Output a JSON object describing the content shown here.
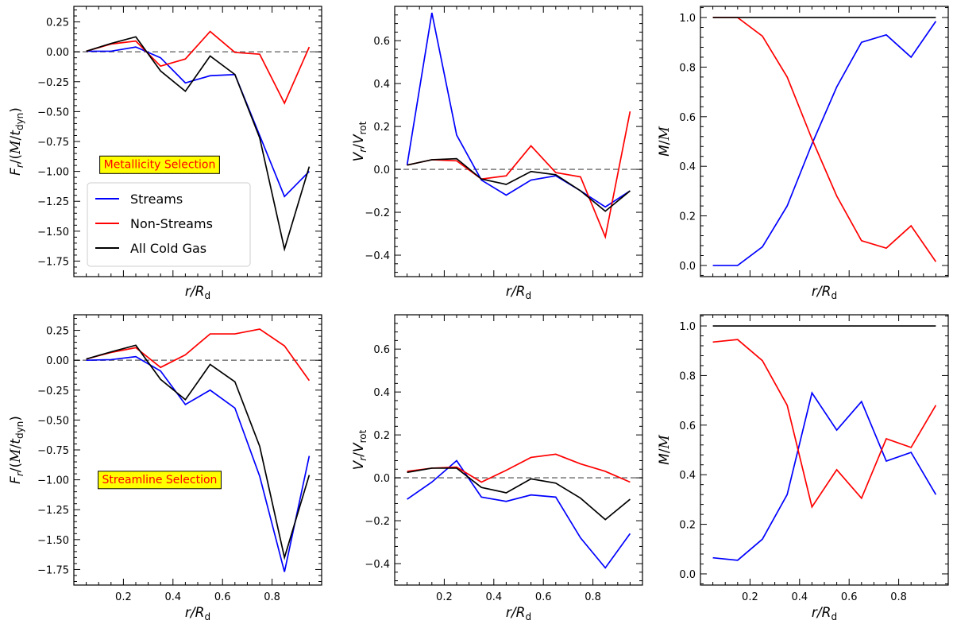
{
  "figure": {
    "rows": 2,
    "cols": 3
  },
  "labels": {
    "xlabel_base": "r/R",
    "xlabel_sub": "d",
    "flux_ylabel_main": "F",
    "flux_ylabel_sub": "r",
    "flux_ylabel_rest": "/(",
    "flux_ylabel_M": "M",
    "flux_ylabel_t": "t",
    "flux_ylabel_tsub": "dyn",
    "flux_ylabel_close": ")",
    "vel_ylabel_V": "V",
    "vel_ylabel_sub_r": "r",
    "vel_ylabel_slash": "/",
    "vel_ylabel_sub_rot": "rot",
    "mass_ylabel_M": "M",
    "mass_ylabel_slash": "/",
    "mass_ylabel_M2": "M"
  },
  "legend": {
    "location": "middle-left of top-left panel",
    "entries": [
      {
        "label": "Streams",
        "color": "#0000ff"
      },
      {
        "label": "Non-Streams",
        "color": "#ff0000"
      },
      {
        "label": "All Cold Gas",
        "color": "#000000"
      }
    ]
  },
  "colors": {
    "streams": "#0000ff",
    "nonstreams": "#ff0000",
    "all": "#000000",
    "ref": "#808080",
    "ann_bg": "#ffff00",
    "ann_text": "#ff0000"
  },
  "chart_data": [
    {
      "id": "top-flux",
      "type": "line",
      "row": 0,
      "col": 0,
      "annotation": "Metallicity Selection",
      "xlim": [
        0.0,
        1.0
      ],
      "ylim": [
        -1.88,
        0.38
      ],
      "xticks": [
        0.2,
        0.4,
        0.6,
        0.8
      ],
      "xtick_labels_shown": false,
      "yticks": [
        0.25,
        0.0,
        -0.25,
        -0.5,
        -0.75,
        -1.0,
        -1.25,
        -1.5,
        -1.75
      ],
      "ytick_labels": [
        "0.25",
        "0.00",
        "−0.25",
        "−0.50",
        "−0.75",
        "−1.00",
        "−1.25",
        "−1.50",
        "−1.75"
      ],
      "ylabel_kind": "flux",
      "hline": 0.0,
      "has_legend": true,
      "x": [
        0.05,
        0.15,
        0.25,
        0.35,
        0.45,
        0.55,
        0.65,
        0.75,
        0.85,
        0.95
      ],
      "series": [
        {
          "name": "Streams",
          "values": [
            0.005,
            0.005,
            0.04,
            -0.05,
            -0.26,
            -0.2,
            -0.19,
            -0.7,
            -1.21,
            -1.0
          ]
        },
        {
          "name": "Non-Streams",
          "values": [
            0.005,
            0.065,
            0.09,
            -0.12,
            -0.06,
            0.17,
            -0.005,
            -0.02,
            -0.43,
            0.04
          ]
        },
        {
          "name": "All Cold Gas",
          "values": [
            0.005,
            0.07,
            0.125,
            -0.16,
            -0.33,
            -0.035,
            -0.19,
            -0.72,
            -1.65,
            -0.96
          ]
        }
      ]
    },
    {
      "id": "top-vel",
      "type": "line",
      "row": 0,
      "col": 1,
      "xlim": [
        0.0,
        1.0
      ],
      "ylim": [
        -0.5,
        0.76
      ],
      "xticks": [
        0.2,
        0.4,
        0.6,
        0.8
      ],
      "xtick_labels_shown": false,
      "yticks": [
        0.6,
        0.4,
        0.2,
        0.0,
        -0.2,
        -0.4
      ],
      "ytick_labels": [
        "0.6",
        "0.4",
        "0.2",
        "0.0",
        "−0.2",
        "−0.4"
      ],
      "ylabel_kind": "vel",
      "hline": 0.0,
      "x": [
        0.05,
        0.15,
        0.25,
        0.35,
        0.45,
        0.55,
        0.65,
        0.75,
        0.85,
        0.95
      ],
      "series": [
        {
          "name": "Streams",
          "values": [
            0.02,
            0.73,
            0.16,
            -0.05,
            -0.12,
            -0.05,
            -0.03,
            -0.1,
            -0.175,
            -0.1
          ]
        },
        {
          "name": "Non-Streams",
          "values": [
            0.02,
            0.045,
            0.04,
            -0.045,
            -0.03,
            0.11,
            -0.015,
            -0.035,
            -0.315,
            0.27
          ]
        },
        {
          "name": "All Cold Gas",
          "values": [
            0.02,
            0.045,
            0.05,
            -0.045,
            -0.07,
            -0.01,
            -0.025,
            -0.1,
            -0.195,
            -0.1
          ]
        }
      ]
    },
    {
      "id": "top-mass",
      "type": "line",
      "row": 0,
      "col": 2,
      "xlim": [
        0.0,
        1.0
      ],
      "ylim": [
        -0.045,
        1.045
      ],
      "xticks": [
        0.2,
        0.4,
        0.6,
        0.8
      ],
      "xtick_labels_shown": false,
      "yticks": [
        0.0,
        0.2,
        0.4,
        0.6,
        0.8,
        1.0
      ],
      "ytick_labels": [
        "0.0",
        "0.2",
        "0.4",
        "0.6",
        "0.8",
        "1.0"
      ],
      "ylabel_kind": "mass",
      "x": [
        0.05,
        0.15,
        0.25,
        0.35,
        0.45,
        0.55,
        0.65,
        0.75,
        0.85,
        0.95
      ],
      "series": [
        {
          "name": "Streams",
          "values": [
            0.0,
            0.0,
            0.075,
            0.24,
            0.49,
            0.72,
            0.9,
            0.93,
            0.84,
            0.985
          ]
        },
        {
          "name": "Non-Streams",
          "values": [
            1.0,
            1.0,
            0.925,
            0.76,
            0.51,
            0.28,
            0.1,
            0.07,
            0.16,
            0.015
          ]
        },
        {
          "name": "All Cold Gas",
          "values": [
            1.0,
            1.0,
            1.0,
            1.0,
            1.0,
            1.0,
            1.0,
            1.0,
            1.0,
            1.0
          ]
        }
      ]
    },
    {
      "id": "bot-flux",
      "type": "line",
      "row": 1,
      "col": 0,
      "annotation": "Streamline Selection",
      "xlim": [
        0.0,
        1.0
      ],
      "ylim": [
        -1.88,
        0.38
      ],
      "xticks": [
        0.2,
        0.4,
        0.6,
        0.8
      ],
      "xtick_labels_shown": true,
      "xtick_labels": [
        "0.2",
        "0.4",
        "0.6",
        "0.8"
      ],
      "yticks": [
        0.25,
        0.0,
        -0.25,
        -0.5,
        -0.75,
        -1.0,
        -1.25,
        -1.5,
        -1.75
      ],
      "ytick_labels": [
        "0.25",
        "0.00",
        "−0.25",
        "−0.50",
        "−0.75",
        "−1.00",
        "−1.25",
        "−1.50",
        "−1.75"
      ],
      "ylabel_kind": "flux",
      "hline": 0.0,
      "x": [
        0.05,
        0.15,
        0.25,
        0.35,
        0.45,
        0.55,
        0.65,
        0.75,
        0.85,
        0.95
      ],
      "series": [
        {
          "name": "Streams",
          "values": [
            0.0,
            0.005,
            0.03,
            -0.09,
            -0.37,
            -0.25,
            -0.4,
            -0.97,
            -1.77,
            -0.8
          ]
        },
        {
          "name": "Non-Streams",
          "values": [
            0.01,
            0.065,
            0.105,
            -0.06,
            0.045,
            0.22,
            0.22,
            0.26,
            0.12,
            -0.17
          ]
        },
        {
          "name": "All Cold Gas",
          "values": [
            0.01,
            0.07,
            0.125,
            -0.16,
            -0.33,
            -0.035,
            -0.18,
            -0.72,
            -1.65,
            -0.96
          ]
        }
      ]
    },
    {
      "id": "bot-vel",
      "type": "line",
      "row": 1,
      "col": 1,
      "xlim": [
        0.0,
        1.0
      ],
      "ylim": [
        -0.5,
        0.76
      ],
      "xticks": [
        0.2,
        0.4,
        0.6,
        0.8
      ],
      "xtick_labels_shown": true,
      "xtick_labels": [
        "0.2",
        "0.4",
        "0.6",
        "0.8"
      ],
      "yticks": [
        0.6,
        0.4,
        0.2,
        0.0,
        -0.2,
        -0.4
      ],
      "ytick_labels": [
        "0.6",
        "0.4",
        "0.2",
        "0.0",
        "−0.2",
        "−0.4"
      ],
      "ylabel_kind": "vel",
      "hline": 0.0,
      "x": [
        0.05,
        0.15,
        0.25,
        0.35,
        0.45,
        0.55,
        0.65,
        0.75,
        0.85,
        0.95
      ],
      "series": [
        {
          "name": "Streams",
          "values": [
            -0.1,
            -0.02,
            0.08,
            -0.09,
            -0.11,
            -0.08,
            -0.09,
            -0.28,
            -0.42,
            -0.26
          ]
        },
        {
          "name": "Non-Streams",
          "values": [
            0.03,
            0.045,
            0.05,
            -0.02,
            0.035,
            0.095,
            0.11,
            0.065,
            0.03,
            -0.02
          ]
        },
        {
          "name": "All Cold Gas",
          "values": [
            0.025,
            0.045,
            0.045,
            -0.045,
            -0.07,
            -0.005,
            -0.025,
            -0.095,
            -0.195,
            -0.1
          ]
        }
      ]
    },
    {
      "id": "bot-mass",
      "type": "line",
      "row": 1,
      "col": 2,
      "xlim": [
        0.0,
        1.0
      ],
      "ylim": [
        -0.045,
        1.045
      ],
      "xticks": [
        0.2,
        0.4,
        0.6,
        0.8
      ],
      "xtick_labels_shown": true,
      "xtick_labels": [
        "0.2",
        "0.4",
        "0.6",
        "0.8"
      ],
      "yticks": [
        0.0,
        0.2,
        0.4,
        0.6,
        0.8,
        1.0
      ],
      "ytick_labels": [
        "0.0",
        "0.2",
        "0.4",
        "0.6",
        "0.8",
        "1.0"
      ],
      "ylabel_kind": "mass",
      "x": [
        0.05,
        0.15,
        0.25,
        0.35,
        0.45,
        0.55,
        0.65,
        0.75,
        0.85,
        0.95
      ],
      "series": [
        {
          "name": "Streams",
          "values": [
            0.065,
            0.055,
            0.14,
            0.32,
            0.73,
            0.58,
            0.695,
            0.455,
            0.49,
            0.32
          ]
        },
        {
          "name": "Non-Streams",
          "values": [
            0.935,
            0.945,
            0.86,
            0.68,
            0.27,
            0.42,
            0.305,
            0.545,
            0.51,
            0.68
          ]
        },
        {
          "name": "All Cold Gas",
          "values": [
            1.0,
            1.0,
            1.0,
            1.0,
            1.0,
            1.0,
            1.0,
            1.0,
            1.0,
            1.0
          ]
        }
      ]
    }
  ]
}
